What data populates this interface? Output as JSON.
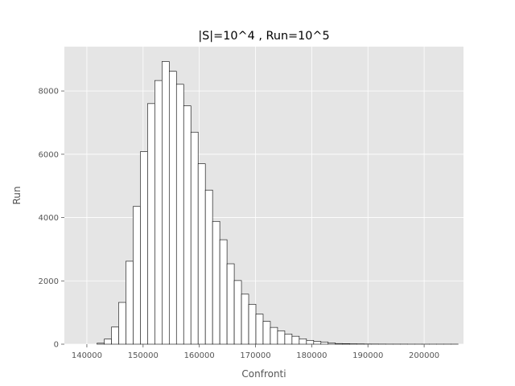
{
  "chart_data": {
    "type": "bar",
    "title": "|S|=10^4 , Run=10^5",
    "xlabel": "Confronti",
    "ylabel": "Run",
    "xlim": [
      136000,
      207000
    ],
    "ylim": [
      0,
      9400
    ],
    "x_ticks": [
      140000,
      150000,
      160000,
      170000,
      180000,
      190000,
      200000
    ],
    "y_ticks": [
      0,
      2000,
      4000,
      6000,
      8000
    ],
    "grid": true,
    "bin_start": 141800,
    "bin_width": 1285,
    "values": [
      30,
      160,
      540,
      1320,
      2620,
      4350,
      6080,
      7600,
      8330,
      8930,
      8620,
      8210,
      7530,
      6700,
      5700,
      4870,
      3880,
      3300,
      2540,
      2010,
      1580,
      1260,
      950,
      720,
      530,
      420,
      320,
      250,
      170,
      120,
      90,
      70,
      40,
      20,
      15,
      10,
      8,
      5,
      4,
      3,
      2,
      2,
      2,
      1,
      1,
      1,
      1,
      1,
      1,
      1
    ],
    "colors": {
      "bar_fill": "#ffffff",
      "bar_edge": "#000000",
      "plot_bg": "#e5e5e5",
      "grid": "#ffffff"
    }
  }
}
